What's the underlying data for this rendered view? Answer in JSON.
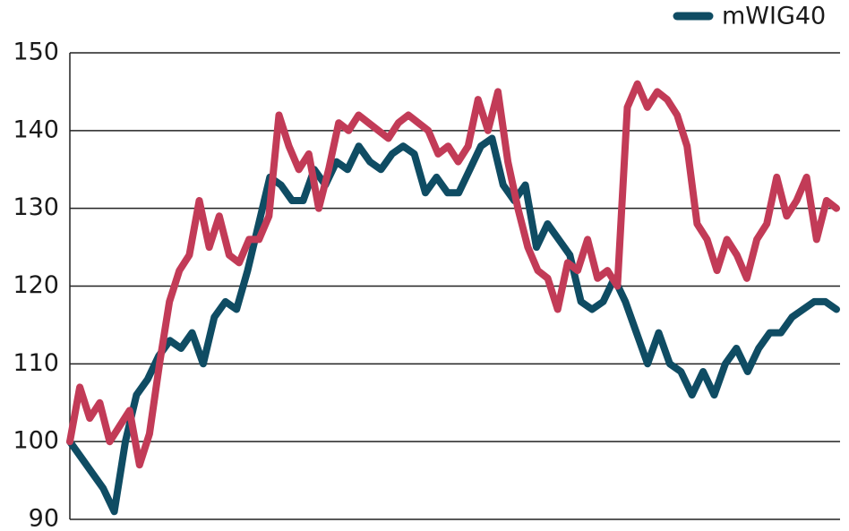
{
  "chart_data": {
    "type": "line",
    "series": [
      {
        "name": "mWIG40",
        "color": "#0f4c63",
        "values": [
          100,
          98,
          96,
          94,
          91,
          100,
          106,
          108,
          111,
          113,
          112,
          114,
          110,
          116,
          118,
          117,
          122,
          128,
          134,
          133,
          131,
          131,
          135,
          133,
          136,
          135,
          138,
          136,
          135,
          137,
          138,
          137,
          132,
          134,
          132,
          132,
          135,
          138,
          139,
          133,
          131,
          133,
          125,
          128,
          126,
          124,
          118,
          117,
          118,
          121,
          118,
          114,
          110,
          114,
          110,
          109,
          106,
          109,
          106,
          110,
          112,
          109,
          112,
          114,
          114,
          116,
          117,
          118,
          118,
          117
        ]
      },
      {
        "color": "#c23b57",
        "values": [
          100,
          107,
          103,
          105,
          100,
          102,
          104,
          97,
          101,
          110,
          118,
          122,
          124,
          131,
          125,
          129,
          124,
          123,
          126,
          126,
          129,
          142,
          138,
          135,
          137,
          130,
          135,
          141,
          140,
          142,
          141,
          140,
          139,
          141,
          142,
          141,
          140,
          137,
          138,
          136,
          138,
          144,
          140,
          145,
          136,
          130,
          125,
          122,
          121,
          117,
          123,
          122,
          126,
          121,
          122,
          120,
          143,
          146,
          143,
          145,
          144,
          142,
          138,
          128,
          126,
          122,
          126,
          124,
          121,
          126,
          128,
          134,
          129,
          131,
          134,
          126,
          131,
          130
        ]
      }
    ],
    "ylim": [
      90,
      150
    ],
    "yticks": [
      90,
      100,
      110,
      120,
      130,
      140,
      150
    ],
    "grid": true,
    "legend": "top-right"
  }
}
